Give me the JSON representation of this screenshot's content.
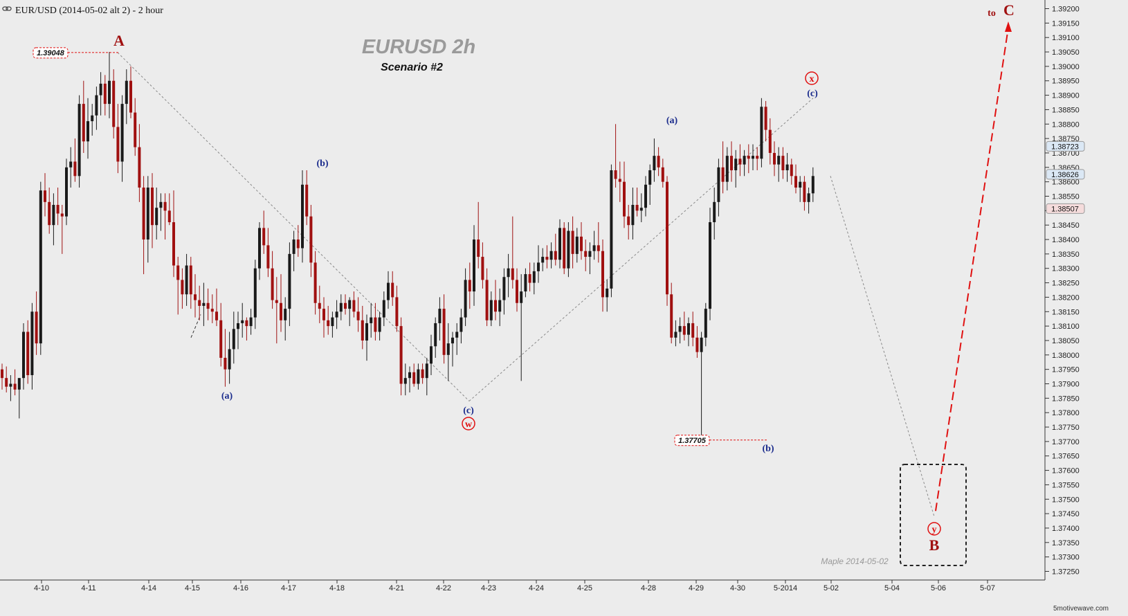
{
  "header": {
    "title": "EUR/USD (2014-05-02 alt 2) - 2 hour",
    "link_icon": "chain-link-icon"
  },
  "chart_title": "EURUSD  2h",
  "chart_subtitle": "Scenario #2",
  "watermark": "5motivewave.com",
  "signature": "Maple  2014-05-02",
  "colors": {
    "background": "#ececec",
    "up_candle": "#1a1a1a",
    "down_candle": "#a01010",
    "wave_blue": "#1a2b8c",
    "wave_red": "#e01010",
    "wave_dark_red": "#a01010",
    "projection": "#e01010",
    "trend_lines": "#888888"
  },
  "axis": {
    "price_ticks": [
      "1.39200",
      "1.39150",
      "1.39100",
      "1.39050",
      "1.39000",
      "1.38950",
      "1.38900",
      "1.38850",
      "1.38800",
      "1.38750",
      "1.38700",
      "1.38650",
      "1.38600",
      "1.38550",
      "1.38500",
      "1.38450",
      "1.38400",
      "1.38350",
      "1.38300",
      "1.38250",
      "1.38200",
      "1.38150",
      "1.38100",
      "1.38050",
      "1.38000",
      "1.37950",
      "1.37900",
      "1.37850",
      "1.37800",
      "1.37750",
      "1.37700",
      "1.37650",
      "1.37600",
      "1.37550",
      "1.37500",
      "1.37450",
      "1.37400",
      "1.37350",
      "1.37300",
      "1.37250"
    ],
    "date_ticks": [
      "4-10",
      "4-11",
      "4-14",
      "4-15",
      "4-16",
      "4-17",
      "4-18",
      "4-21",
      "4-22",
      "4-23",
      "4-24",
      "4-25",
      "4-28",
      "4-29",
      "4-30",
      "5-2014",
      "5-02",
      "5-04",
      "5-06",
      "5-07"
    ]
  },
  "price_tags": [
    {
      "label": "1.38723",
      "price": 1.38723,
      "color": "#dbe8f5"
    },
    {
      "label": "1.38626",
      "price": 1.38626,
      "color": "#dbe8f5"
    },
    {
      "label": "1.38507",
      "price": 1.38507,
      "color": "#f5dcdc"
    }
  ],
  "price_boxes": [
    {
      "label": "1.39048",
      "price": 1.39048
    },
    {
      "label": "1.37705",
      "price": 1.37705
    }
  ],
  "wave_labels": {
    "A": "A",
    "B": "B",
    "C": "C",
    "to": "to",
    "a1": "(a)",
    "b1": "(b)",
    "c1": "(c)",
    "w": "w",
    "a2": "(a)",
    "b2": "(b)",
    "c2": "(c)",
    "x": "x",
    "y": "y"
  },
  "chart_data": {
    "type": "candlestick",
    "title": "EURUSD  2h",
    "subtitle": "Scenario #2",
    "ylim": [
      1.3722,
      1.3923
    ],
    "grid": false,
    "candles": [
      [
        1.3795,
        1.3797,
        1.3788,
        1.3792
      ],
      [
        1.3792,
        1.3796,
        1.3787,
        1.3789
      ],
      [
        1.3789,
        1.3793,
        1.3784,
        1.379
      ],
      [
        1.379,
        1.3795,
        1.3786,
        1.3788
      ],
      [
        1.3788,
        1.3791,
        1.3778,
        1.3792
      ],
      [
        1.3792,
        1.3811,
        1.3788,
        1.3808
      ],
      [
        1.3808,
        1.3812,
        1.379,
        1.3793
      ],
      [
        1.3793,
        1.3818,
        1.3788,
        1.3815
      ],
      [
        1.3815,
        1.3822,
        1.38,
        1.3804
      ],
      [
        1.3804,
        1.386,
        1.38,
        1.3857
      ],
      [
        1.3857,
        1.3863,
        1.3848,
        1.3853
      ],
      [
        1.3853,
        1.3858,
        1.3842,
        1.3845
      ],
      [
        1.3845,
        1.3856,
        1.3838,
        1.3852
      ],
      [
        1.3852,
        1.3858,
        1.3845,
        1.3849
      ],
      [
        1.3849,
        1.3852,
        1.3835,
        1.3848
      ],
      [
        1.3848,
        1.3868,
        1.3845,
        1.3865
      ],
      [
        1.3865,
        1.3872,
        1.3858,
        1.3867
      ],
      [
        1.3867,
        1.3875,
        1.386,
        1.3862
      ],
      [
        1.3862,
        1.389,
        1.3858,
        1.3887
      ],
      [
        1.3887,
        1.3895,
        1.387,
        1.3874
      ],
      [
        1.3874,
        1.3889,
        1.3868,
        1.3881
      ],
      [
        1.3881,
        1.3887,
        1.3876,
        1.3883
      ],
      [
        1.3883,
        1.3893,
        1.3878,
        1.389
      ],
      [
        1.389,
        1.3898,
        1.3883,
        1.3894
      ],
      [
        1.3894,
        1.3897,
        1.3883,
        1.3887
      ],
      [
        1.3887,
        1.3905,
        1.3882,
        1.3895
      ],
      [
        1.3895,
        1.3899,
        1.3875,
        1.3879
      ],
      [
        1.3879,
        1.3887,
        1.3863,
        1.3867
      ],
      [
        1.3867,
        1.389,
        1.386,
        1.3887
      ],
      [
        1.3887,
        1.3899,
        1.388,
        1.3895
      ],
      [
        1.3895,
        1.39,
        1.3882,
        1.3884
      ],
      [
        1.3884,
        1.3889,
        1.3869,
        1.3872
      ],
      [
        1.3872,
        1.388,
        1.3853,
        1.3858
      ],
      [
        1.3858,
        1.3862,
        1.3828,
        1.384
      ],
      [
        1.384,
        1.3862,
        1.3832,
        1.3858
      ],
      [
        1.3858,
        1.3863,
        1.3837,
        1.3845
      ],
      [
        1.3845,
        1.3858,
        1.384,
        1.3851
      ],
      [
        1.3851,
        1.3856,
        1.3843,
        1.3853
      ],
      [
        1.3853,
        1.3856,
        1.384,
        1.385
      ],
      [
        1.385,
        1.3856,
        1.3845,
        1.3846
      ],
      [
        1.3846,
        1.3857,
        1.3827,
        1.3831
      ],
      [
        1.3831,
        1.3834,
        1.3814,
        1.3826
      ],
      [
        1.3826,
        1.383,
        1.3816,
        1.3821
      ],
      [
        1.3821,
        1.3835,
        1.3817,
        1.3831
      ],
      [
        1.3831,
        1.3834,
        1.3816,
        1.3821
      ],
      [
        1.3821,
        1.3828,
        1.3813,
        1.3819
      ],
      [
        1.3819,
        1.3824,
        1.3812,
        1.3817
      ],
      [
        1.3817,
        1.3825,
        1.381,
        1.3818
      ],
      [
        1.3818,
        1.3823,
        1.3812,
        1.3816
      ],
      [
        1.3816,
        1.3821,
        1.3811,
        1.3815
      ],
      [
        1.3815,
        1.3823,
        1.381,
        1.3812
      ],
      [
        1.3812,
        1.3818,
        1.3796,
        1.3799
      ],
      [
        1.3799,
        1.3809,
        1.3789,
        1.3795
      ],
      [
        1.3795,
        1.3808,
        1.379,
        1.3802
      ],
      [
        1.3802,
        1.3815,
        1.3797,
        1.3809
      ],
      [
        1.3809,
        1.3815,
        1.3802,
        1.3811
      ],
      [
        1.3811,
        1.3818,
        1.3806,
        1.3812
      ],
      [
        1.3812,
        1.3813,
        1.3805,
        1.381
      ],
      [
        1.381,
        1.3816,
        1.3807,
        1.3813
      ],
      [
        1.3813,
        1.3833,
        1.3809,
        1.383
      ],
      [
        1.383,
        1.3846,
        1.3826,
        1.3844
      ],
      [
        1.3844,
        1.385,
        1.3835,
        1.3838
      ],
      [
        1.3838,
        1.3844,
        1.3827,
        1.383
      ],
      [
        1.383,
        1.3836,
        1.3816,
        1.3819
      ],
      [
        1.3819,
        1.3827,
        1.3804,
        1.3818
      ],
      [
        1.3818,
        1.3828,
        1.3808,
        1.3812
      ],
      [
        1.3812,
        1.382,
        1.3805,
        1.3816
      ],
      [
        1.3816,
        1.3839,
        1.381,
        1.3835
      ],
      [
        1.3835,
        1.3843,
        1.3829,
        1.384
      ],
      [
        1.384,
        1.3845,
        1.3834,
        1.3837
      ],
      [
        1.3837,
        1.3864,
        1.3832,
        1.3859
      ],
      [
        1.3859,
        1.3864,
        1.3845,
        1.3848
      ],
      [
        1.3848,
        1.3852,
        1.3827,
        1.3832
      ],
      [
        1.3832,
        1.3836,
        1.3814,
        1.3818
      ],
      [
        1.3818,
        1.3824,
        1.3811,
        1.3816
      ],
      [
        1.3816,
        1.382,
        1.3806,
        1.3812
      ],
      [
        1.3812,
        1.3817,
        1.3807,
        1.381
      ],
      [
        1.381,
        1.3815,
        1.3806,
        1.3813
      ],
      [
        1.3813,
        1.3819,
        1.3809,
        1.3815
      ],
      [
        1.3815,
        1.3821,
        1.3812,
        1.3818
      ],
      [
        1.3818,
        1.3821,
        1.3814,
        1.3816
      ],
      [
        1.3816,
        1.382,
        1.381,
        1.3819
      ],
      [
        1.3819,
        1.3822,
        1.3813,
        1.3815
      ],
      [
        1.3815,
        1.382,
        1.3808,
        1.3812
      ],
      [
        1.3812,
        1.3817,
        1.3802,
        1.3805
      ],
      [
        1.3805,
        1.3814,
        1.3798,
        1.3811
      ],
      [
        1.3811,
        1.3818,
        1.3806,
        1.3813
      ],
      [
        1.3813,
        1.3818,
        1.3805,
        1.3808
      ],
      [
        1.3808,
        1.3815,
        1.3805,
        1.3813
      ],
      [
        1.3813,
        1.3822,
        1.381,
        1.3819
      ],
      [
        1.3819,
        1.3829,
        1.3816,
        1.3825
      ],
      [
        1.3825,
        1.3829,
        1.3817,
        1.382
      ],
      [
        1.382,
        1.3824,
        1.3808,
        1.381
      ],
      [
        1.381,
        1.3813,
        1.3786,
        1.379
      ],
      [
        1.379,
        1.3797,
        1.3786,
        1.3792
      ],
      [
        1.3792,
        1.3796,
        1.3787,
        1.3794
      ],
      [
        1.3794,
        1.3797,
        1.3789,
        1.379
      ],
      [
        1.379,
        1.3797,
        1.3788,
        1.3795
      ],
      [
        1.3795,
        1.3797,
        1.379,
        1.3792
      ],
      [
        1.3792,
        1.3799,
        1.3786,
        1.3797
      ],
      [
        1.3797,
        1.3807,
        1.3793,
        1.3803
      ],
      [
        1.3803,
        1.3813,
        1.3799,
        1.3811
      ],
      [
        1.3811,
        1.382,
        1.3805,
        1.3816
      ],
      [
        1.3816,
        1.3821,
        1.3797,
        1.38
      ],
      [
        1.38,
        1.3811,
        1.3791,
        1.3804
      ],
      [
        1.3804,
        1.3808,
        1.3796,
        1.3806
      ],
      [
        1.3806,
        1.3811,
        1.38,
        1.3808
      ],
      [
        1.3808,
        1.3816,
        1.3804,
        1.3813
      ],
      [
        1.3813,
        1.383,
        1.381,
        1.3826
      ],
      [
        1.3826,
        1.3832,
        1.3816,
        1.3822
      ],
      [
        1.3822,
        1.3845,
        1.3817,
        1.384
      ],
      [
        1.384,
        1.3853,
        1.383,
        1.3834
      ],
      [
        1.3834,
        1.3839,
        1.3823,
        1.3826
      ],
      [
        1.3826,
        1.383,
        1.381,
        1.3812
      ],
      [
        1.3812,
        1.3822,
        1.381,
        1.3819
      ],
      [
        1.3819,
        1.3826,
        1.3812,
        1.3815
      ],
      [
        1.3815,
        1.3823,
        1.381,
        1.3819
      ],
      [
        1.3819,
        1.383,
        1.3814,
        1.3827
      ],
      [
        1.3827,
        1.3835,
        1.382,
        1.383
      ],
      [
        1.383,
        1.3848,
        1.3823,
        1.3826
      ],
      [
        1.3826,
        1.383,
        1.3815,
        1.3818
      ],
      [
        1.3818,
        1.3828,
        1.3791,
        1.3822
      ],
      [
        1.3822,
        1.383,
        1.382,
        1.3828
      ],
      [
        1.3828,
        1.3832,
        1.3822,
        1.3825
      ],
      [
        1.3825,
        1.3832,
        1.3821,
        1.3829
      ],
      [
        1.3829,
        1.3838,
        1.3825,
        1.3832
      ],
      [
        1.3832,
        1.3837,
        1.3829,
        1.3834
      ],
      [
        1.3834,
        1.3838,
        1.383,
        1.3833
      ],
      [
        1.3833,
        1.3839,
        1.383,
        1.3836
      ],
      [
        1.3836,
        1.3842,
        1.3831,
        1.3833
      ],
      [
        1.3833,
        1.3847,
        1.383,
        1.3844
      ],
      [
        1.3844,
        1.3846,
        1.3828,
        1.383
      ],
      [
        1.383,
        1.3846,
        1.3827,
        1.3843
      ],
      [
        1.3843,
        1.3848,
        1.383,
        1.3835
      ],
      [
        1.3835,
        1.3844,
        1.3832,
        1.3841
      ],
      [
        1.3841,
        1.3846,
        1.3833,
        1.3836
      ],
      [
        1.3836,
        1.384,
        1.3829,
        1.3834
      ],
      [
        1.3834,
        1.3839,
        1.3828,
        1.3836
      ],
      [
        1.3836,
        1.3843,
        1.3833,
        1.3838
      ],
      [
        1.3838,
        1.3846,
        1.3832,
        1.3836
      ],
      [
        1.3836,
        1.384,
        1.3815,
        1.382
      ],
      [
        1.382,
        1.3826,
        1.3815,
        1.3823
      ],
      [
        1.3823,
        1.3866,
        1.382,
        1.3864
      ],
      [
        1.3864,
        1.388,
        1.3858,
        1.3861
      ],
      [
        1.3861,
        1.3867,
        1.3853,
        1.386
      ],
      [
        1.386,
        1.3867,
        1.3844,
        1.3848
      ],
      [
        1.3848,
        1.3852,
        1.384,
        1.3845
      ],
      [
        1.3845,
        1.3858,
        1.384,
        1.3852
      ],
      [
        1.3852,
        1.3858,
        1.3848,
        1.385
      ],
      [
        1.385,
        1.3856,
        1.3846,
        1.3851
      ],
      [
        1.3851,
        1.3862,
        1.3848,
        1.3859
      ],
      [
        1.3859,
        1.3866,
        1.3852,
        1.3864
      ],
      [
        1.3864,
        1.3875,
        1.386,
        1.3869
      ],
      [
        1.3869,
        1.3872,
        1.3862,
        1.3865
      ],
      [
        1.3865,
        1.3868,
        1.3858,
        1.386
      ],
      [
        1.386,
        1.3862,
        1.3817,
        1.3821
      ],
      [
        1.3821,
        1.3825,
        1.3804,
        1.3806
      ],
      [
        1.3806,
        1.3812,
        1.3803,
        1.3808
      ],
      [
        1.3808,
        1.3813,
        1.3804,
        1.381
      ],
      [
        1.381,
        1.3815,
        1.3805,
        1.3807
      ],
      [
        1.3807,
        1.3813,
        1.3803,
        1.3811
      ],
      [
        1.3811,
        1.3815,
        1.3803,
        1.3806
      ],
      [
        1.3806,
        1.381,
        1.3799,
        1.3801
      ],
      [
        1.3801,
        1.3808,
        1.3771,
        1.3806
      ],
      [
        1.3806,
        1.3818,
        1.3803,
        1.3816
      ],
      [
        1.3816,
        1.3851,
        1.3812,
        1.3846
      ],
      [
        1.3846,
        1.3858,
        1.384,
        1.3853
      ],
      [
        1.3853,
        1.3868,
        1.3848,
        1.3865
      ],
      [
        1.3865,
        1.3874,
        1.3856,
        1.386
      ],
      [
        1.386,
        1.3872,
        1.3857,
        1.3869
      ],
      [
        1.3869,
        1.3874,
        1.386,
        1.3864
      ],
      [
        1.3864,
        1.3871,
        1.3858,
        1.3868
      ],
      [
        1.3868,
        1.3873,
        1.3862,
        1.3866
      ],
      [
        1.3866,
        1.3871,
        1.3862,
        1.3869
      ],
      [
        1.3869,
        1.3873,
        1.3863,
        1.3868
      ],
      [
        1.3868,
        1.3873,
        1.3864,
        1.3869
      ],
      [
        1.3869,
        1.3872,
        1.3864,
        1.3868
      ],
      [
        1.3868,
        1.3889,
        1.3865,
        1.3886
      ],
      [
        1.3886,
        1.3888,
        1.3874,
        1.3878
      ],
      [
        1.3878,
        1.3882,
        1.3866,
        1.387
      ],
      [
        1.387,
        1.3874,
        1.3862,
        1.3866
      ],
      [
        1.3866,
        1.3872,
        1.386,
        1.3869
      ],
      [
        1.3869,
        1.3872,
        1.3861,
        1.3864
      ],
      [
        1.3864,
        1.387,
        1.386,
        1.3866
      ],
      [
        1.3866,
        1.3868,
        1.3859,
        1.3862
      ],
      [
        1.3862,
        1.3866,
        1.3856,
        1.3858
      ],
      [
        1.3858,
        1.3862,
        1.3853,
        1.386
      ],
      [
        1.386,
        1.3862,
        1.385,
        1.3853
      ],
      [
        1.3853,
        1.3858,
        1.3849,
        1.3856
      ],
      [
        1.3856,
        1.3865,
        1.3853,
        1.3862
      ]
    ],
    "wave_points": {
      "A": {
        "label": "A",
        "price": 1.39048
      },
      "a1": {
        "label": "(a)",
        "price": 1.3789
      },
      "b1": {
        "label": "(b)",
        "price": 1.3864
      },
      "c1_w": {
        "label": "(c) w",
        "price": 1.3784
      },
      "a2": {
        "label": "(a)",
        "price": 1.388
      },
      "b2": {
        "label": "(b)",
        "price": 1.37705
      },
      "c2_x": {
        "label": "(c) x",
        "price": 1.3889
      },
      "y_B": {
        "label": "y B",
        "price": 1.3744
      },
      "C": {
        "label": "to C",
        "price": 1.392
      }
    }
  }
}
